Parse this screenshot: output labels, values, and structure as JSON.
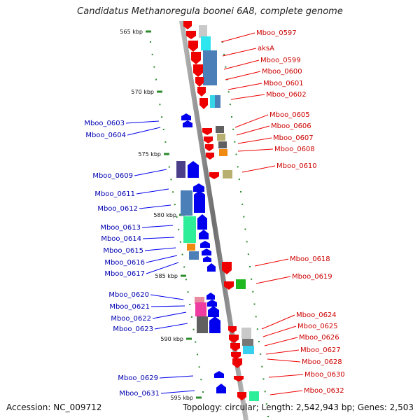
{
  "title": "Candidatus Methanoregula boonei 6A8, complete genome",
  "footer": {
    "accession": "Accession: NC_009712",
    "summary": "Topology: circular; Length: 2,542,943 bp; Genes: 2,503"
  },
  "colors": {
    "forward_strand": "#ee0000",
    "reverse_strand": "#0000ee",
    "backbone": "#8a8a8a",
    "tick": "#2e8b2e"
  },
  "ticks": [
    "565 kbp",
    "570 kbp",
    "575 kbp",
    "580 kbp",
    "585 kbp",
    "590 kbp",
    "595 kbp"
  ],
  "forward_genes": [
    "Mboo_0597",
    "aksA",
    "Mboo_0599",
    "Mboo_0600",
    "Mboo_0601",
    "Mboo_0602",
    "Mboo_0605",
    "Mboo_0606",
    "Mboo_0607",
    "Mboo_0608",
    "Mboo_0610",
    "Mboo_0618",
    "Mboo_0619",
    "Mboo_0624",
    "Mboo_0625",
    "Mboo_0626",
    "Mboo_0627",
    "Mboo_0628",
    "Mboo_0630",
    "Mboo_0632"
  ],
  "reverse_genes": [
    "Mboo_0603",
    "Mboo_0604",
    "Mboo_0609",
    "Mboo_0611",
    "Mboo_0612",
    "Mboo_0613",
    "Mboo_0614",
    "Mboo_0615",
    "Mboo_0616",
    "Mboo_0617",
    "Mboo_0620",
    "Mboo_0621",
    "Mboo_0622",
    "Mboo_0623",
    "Mboo_0629",
    "Mboo_0631"
  ]
}
